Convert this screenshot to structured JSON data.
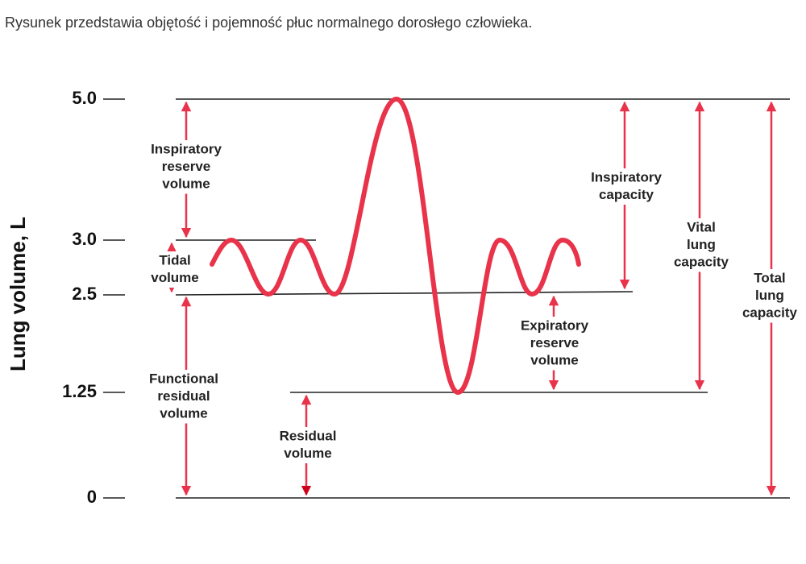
{
  "caption": "Rysunek przedstawia objętość i pojemność płuc normalnego dorosłego człowieka.",
  "axis": {
    "label": "Lung volume, L",
    "ticks": [
      "5.0",
      "3.0",
      "2.5",
      "1.25",
      "0"
    ]
  },
  "labels": [
    [
      "Inspiratory",
      "reserve",
      "volume"
    ],
    [
      "Tidal",
      "volume"
    ],
    [
      "Functional",
      "residual",
      "volume"
    ],
    [
      "Residual",
      "volume"
    ],
    [
      "Expiratory",
      "reserve",
      "volume"
    ],
    [
      "Inspiratory",
      "capacity"
    ],
    [
      "Vital",
      "lung",
      "capacity"
    ],
    [
      "Total",
      "lung",
      "capacity"
    ]
  ]
}
